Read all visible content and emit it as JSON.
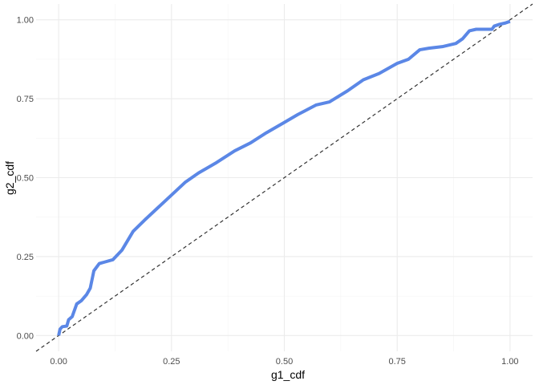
{
  "chart_data": {
    "type": "line",
    "xlabel": "g1_cdf",
    "ylabel": "g2_cdf",
    "xlim": [
      -0.05,
      1.05
    ],
    "ylim": [
      -0.05,
      1.05
    ],
    "x_ticks": [
      0.0,
      0.25,
      0.5,
      0.75,
      1.0
    ],
    "y_ticks": [
      0.0,
      0.25,
      0.5,
      0.75,
      1.0
    ],
    "x_tick_labels": [
      "0.00",
      "0.25",
      "0.50",
      "0.75",
      "1.00"
    ],
    "y_tick_labels": [
      "0.00",
      "0.25",
      "0.50",
      "0.75",
      "1.00"
    ],
    "grid": true,
    "reference_line": {
      "type": "diagonal",
      "slope": 1,
      "intercept": 0,
      "style": "dashed",
      "color": "#333333"
    },
    "series": [
      {
        "color": "#5b87e6",
        "x": [
          0.0,
          0.003,
          0.008,
          0.018,
          0.022,
          0.03,
          0.04,
          0.05,
          0.062,
          0.07,
          0.078,
          0.09,
          0.1,
          0.12,
          0.14,
          0.165,
          0.19,
          0.22,
          0.25,
          0.28,
          0.31,
          0.35,
          0.39,
          0.425,
          0.46,
          0.5,
          0.53,
          0.57,
          0.6,
          0.64,
          0.675,
          0.71,
          0.75,
          0.775,
          0.8,
          0.82,
          0.85,
          0.88,
          0.895,
          0.91,
          0.925,
          0.96,
          0.965,
          0.975,
          0.99,
          1.0
        ],
        "y": [
          0.0,
          0.02,
          0.028,
          0.03,
          0.05,
          0.06,
          0.1,
          0.11,
          0.13,
          0.15,
          0.205,
          0.228,
          0.232,
          0.24,
          0.27,
          0.33,
          0.365,
          0.405,
          0.445,
          0.485,
          0.515,
          0.548,
          0.585,
          0.61,
          0.642,
          0.675,
          0.7,
          0.73,
          0.74,
          0.775,
          0.81,
          0.83,
          0.862,
          0.875,
          0.905,
          0.91,
          0.915,
          0.925,
          0.94,
          0.965,
          0.97,
          0.97,
          0.98,
          0.985,
          0.99,
          0.995
        ]
      }
    ]
  }
}
